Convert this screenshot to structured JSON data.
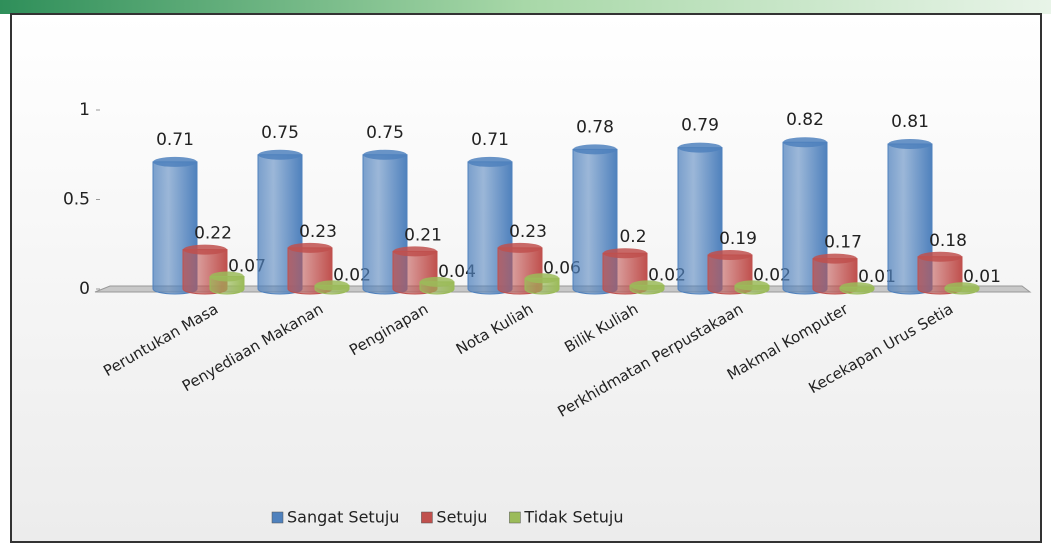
{
  "chart_data": {
    "type": "bar3d",
    "categories": [
      "Peruntukan Masa",
      "Penyediaan Makanan",
      "Penginapan",
      "Nota Kuliah",
      "Bilik Kuliah",
      "Perkhidmatan Perpustakaan",
      "Makmal Komputer",
      "Kecekapan Urus Setia"
    ],
    "series": [
      {
        "name": "Sangat Setuju",
        "color": "#4f81bd",
        "values": [
          0.71,
          0.75,
          0.75,
          0.71,
          0.78,
          0.79,
          0.82,
          0.81
        ]
      },
      {
        "name": "Setuju",
        "color": "#c0504d",
        "values": [
          0.22,
          0.23,
          0.21,
          0.23,
          0.2,
          0.19,
          0.17,
          0.18
        ]
      },
      {
        "name": "Tidak Setuju",
        "color": "#9bbb59",
        "values": [
          0.07,
          0.02,
          0.04,
          0.06,
          0.02,
          0.02,
          0.01,
          0.01
        ]
      }
    ],
    "ylim": [
      0,
      1
    ],
    "yticks": [
      0,
      0.5,
      1
    ],
    "legend": "bottom"
  }
}
